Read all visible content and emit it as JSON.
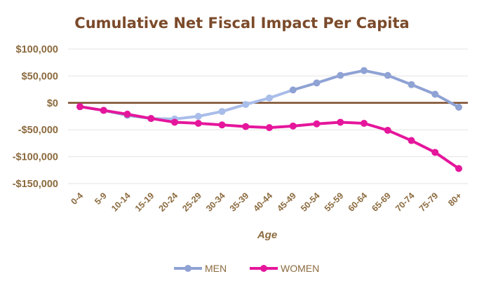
{
  "chart_data": {
    "type": "line",
    "title": "Cumulative Net Fiscal Impact Per Capita",
    "xlabel": "Age",
    "ylabel": "",
    "categories": [
      "0-4",
      "5-9",
      "10-14",
      "15-19",
      "20-24",
      "25-29",
      "30-34",
      "35-39",
      "40-44",
      "45-49",
      "50-54",
      "55-59",
      "60-64",
      "65-69",
      "70-74",
      "75-79",
      "80+"
    ],
    "yticks": [
      100000,
      50000,
      0,
      -50000,
      -100000,
      -150000
    ],
    "ytick_labels": [
      "$100,000",
      "$50,000",
      "$0",
      "-$50,000",
      "-$100,000",
      "-$150,000"
    ],
    "ylim": [
      -150000,
      100000
    ],
    "grid": true,
    "legend_position": "bottom",
    "series": [
      {
        "name": "MEN",
        "color": "#8FA2D4",
        "color_light": "#A9BDEA",
        "values": [
          -7000,
          -14000,
          -23000,
          -29000,
          -30000,
          -25000,
          -16000,
          -3000,
          9000,
          24000,
          37000,
          51000,
          60000,
          51000,
          34000,
          16000,
          -8000
        ]
      },
      {
        "name": "WOMEN",
        "color": "#E5169C",
        "values": [
          -7000,
          -14000,
          -21000,
          -29000,
          -36000,
          -38000,
          -41000,
          -44000,
          -46000,
          -43000,
          -39000,
          -36000,
          -38000,
          -51000,
          -70000,
          -92000,
          -122000
        ]
      }
    ],
    "colors": {
      "title": "#7B4A2A",
      "axis_text": "#8B6A3E",
      "zero_line": "#7A4A28",
      "grid": "#E3E3E3"
    }
  }
}
